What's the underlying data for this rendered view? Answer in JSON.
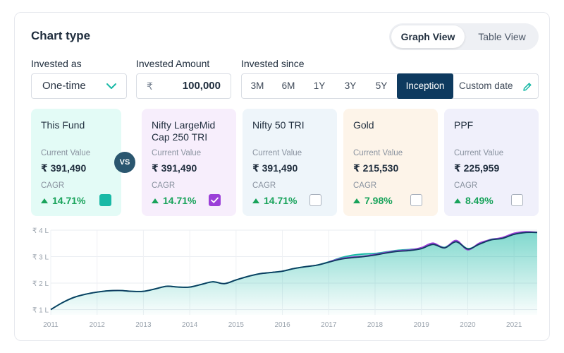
{
  "header": {
    "title": "Chart type"
  },
  "view_toggle": {
    "graph": "Graph View",
    "table": "Table View"
  },
  "controls": {
    "invested_as_label": "Invested as",
    "invested_as_value": "One-time",
    "amount_label": "Invested Amount",
    "currency_symbol": "₹",
    "amount_value": "100,000",
    "since_label": "Invested since",
    "periods": [
      "3M",
      "6M",
      "1Y",
      "3Y",
      "5Y",
      "Inception",
      "Custom date"
    ],
    "active_period": "Inception"
  },
  "funds": [
    {
      "name": "This Fund",
      "cv_label": "Current Value",
      "cv": "₹ 391,490",
      "cagr_label": "CAGR",
      "cagr": "14.71%",
      "bg": "#e3fbf6",
      "checkbox": "solid-teal"
    },
    {
      "name": "Nifty LargeMid Cap 250 TRI",
      "cv_label": "Current Value",
      "cv": "₹ 391,490",
      "cagr_label": "CAGR",
      "cagr": "14.71%",
      "bg": "#f7eefc",
      "checkbox": "checked-purple"
    },
    {
      "name": "Nifty 50 TRI",
      "cv_label": "Current Value",
      "cv": "₹ 391,490",
      "cagr_label": "CAGR",
      "cagr": "14.71%",
      "bg": "#eef5fa",
      "checkbox": "unchecked"
    },
    {
      "name": "Gold",
      "cv_label": "Current Value",
      "cv": "₹ 215,530",
      "cagr_label": "CAGR",
      "cagr": "7.98%",
      "bg": "#fdf4e9",
      "checkbox": "unchecked"
    },
    {
      "name": "PPF",
      "cv_label": "Current Value",
      "cv": "₹ 225,959",
      "cagr_label": "CAGR",
      "cagr": "8.49%",
      "bg": "#f0f0fb",
      "checkbox": "unchecked"
    }
  ],
  "vs_label": "VS",
  "colors": {
    "teal": "#19b9a6",
    "purple": "#9b3fd8",
    "navy": "#0e3a5f",
    "green": "#19a35b"
  },
  "chart_data": {
    "type": "area",
    "y_ticks": [
      "₹ 1 L",
      "₹ 2 L",
      "₹ 3 L",
      "₹ 4 L"
    ],
    "x_ticks": [
      "2011",
      "2012",
      "2013",
      "2014",
      "2015",
      "2016",
      "2017",
      "2018",
      "2019",
      "2020",
      "2021"
    ],
    "ylim": [
      80000,
      400000
    ],
    "series": [
      {
        "color": "#19b9a6",
        "x": [
          2011.0,
          2011.25,
          2011.5,
          2011.75,
          2012.0,
          2012.25,
          2012.5,
          2012.75,
          2013.0,
          2013.25,
          2013.5,
          2013.75,
          2014.0,
          2014.25,
          2014.5,
          2014.75,
          2015.0,
          2015.25,
          2015.5,
          2015.75,
          2016.0,
          2016.25,
          2016.5,
          2016.75,
          2017.0,
          2017.25,
          2017.5,
          2017.75,
          2018.0,
          2018.25,
          2018.5,
          2018.75,
          2019.0,
          2019.25,
          2019.5,
          2019.75,
          2020.0,
          2020.25,
          2020.5,
          2020.75,
          2021.0,
          2021.25,
          2021.5
        ],
        "values": [
          100000,
          126000,
          146000,
          158000,
          166000,
          171000,
          172000,
          169000,
          169000,
          178000,
          188000,
          185000,
          185000,
          195000,
          205000,
          198000,
          212000,
          225000,
          235000,
          240000,
          245000,
          255000,
          262000,
          268000,
          280000,
          295000,
          305000,
          310000,
          312000,
          318000,
          324000,
          327000,
          332000,
          348000,
          335000,
          358000,
          330000,
          348000,
          365000,
          370000,
          385000,
          392000,
          391490
        ]
      },
      {
        "color": "#9b3fd8",
        "x": [
          2017.0,
          2017.25,
          2017.5,
          2017.75,
          2018.0,
          2018.25,
          2018.5,
          2018.75,
          2019.0,
          2019.25,
          2019.5,
          2019.75,
          2020.0,
          2020.25,
          2020.5,
          2020.75,
          2021.0,
          2021.25,
          2021.5
        ],
        "values": [
          280000,
          292000,
          298000,
          301000,
          308000,
          316000,
          322000,
          325000,
          334000,
          351000,
          333000,
          361000,
          326000,
          351000,
          364000,
          372000,
          388000,
          394000,
          391490
        ]
      },
      {
        "color": "#0e3a5f",
        "x": [
          2011.0,
          2011.25,
          2011.5,
          2011.75,
          2012.0,
          2012.25,
          2012.5,
          2012.75,
          2013.0,
          2013.25,
          2013.5,
          2013.75,
          2014.0,
          2014.25,
          2014.5,
          2014.75,
          2015.0,
          2015.25,
          2015.5,
          2015.75,
          2016.0,
          2016.25,
          2016.5,
          2016.75,
          2017.0,
          2017.25,
          2017.5,
          2017.75,
          2018.0,
          2018.25,
          2018.5,
          2018.75,
          2019.0,
          2019.25,
          2019.5,
          2019.75,
          2020.0,
          2020.25,
          2020.5,
          2020.75,
          2021.0,
          2021.25,
          2021.5
        ],
        "values": [
          100000,
          126000,
          146000,
          158000,
          166000,
          171000,
          172000,
          169000,
          169000,
          178000,
          188000,
          185000,
          185000,
          195000,
          205000,
          198000,
          212000,
          225000,
          235000,
          240000,
          245000,
          255000,
          262000,
          268000,
          279000,
          290000,
          296000,
          300000,
          306000,
          314000,
          320000,
          323000,
          330000,
          346000,
          333000,
          356000,
          329000,
          347000,
          363000,
          369000,
          384000,
          391000,
          391490
        ]
      }
    ],
    "grid": true
  }
}
